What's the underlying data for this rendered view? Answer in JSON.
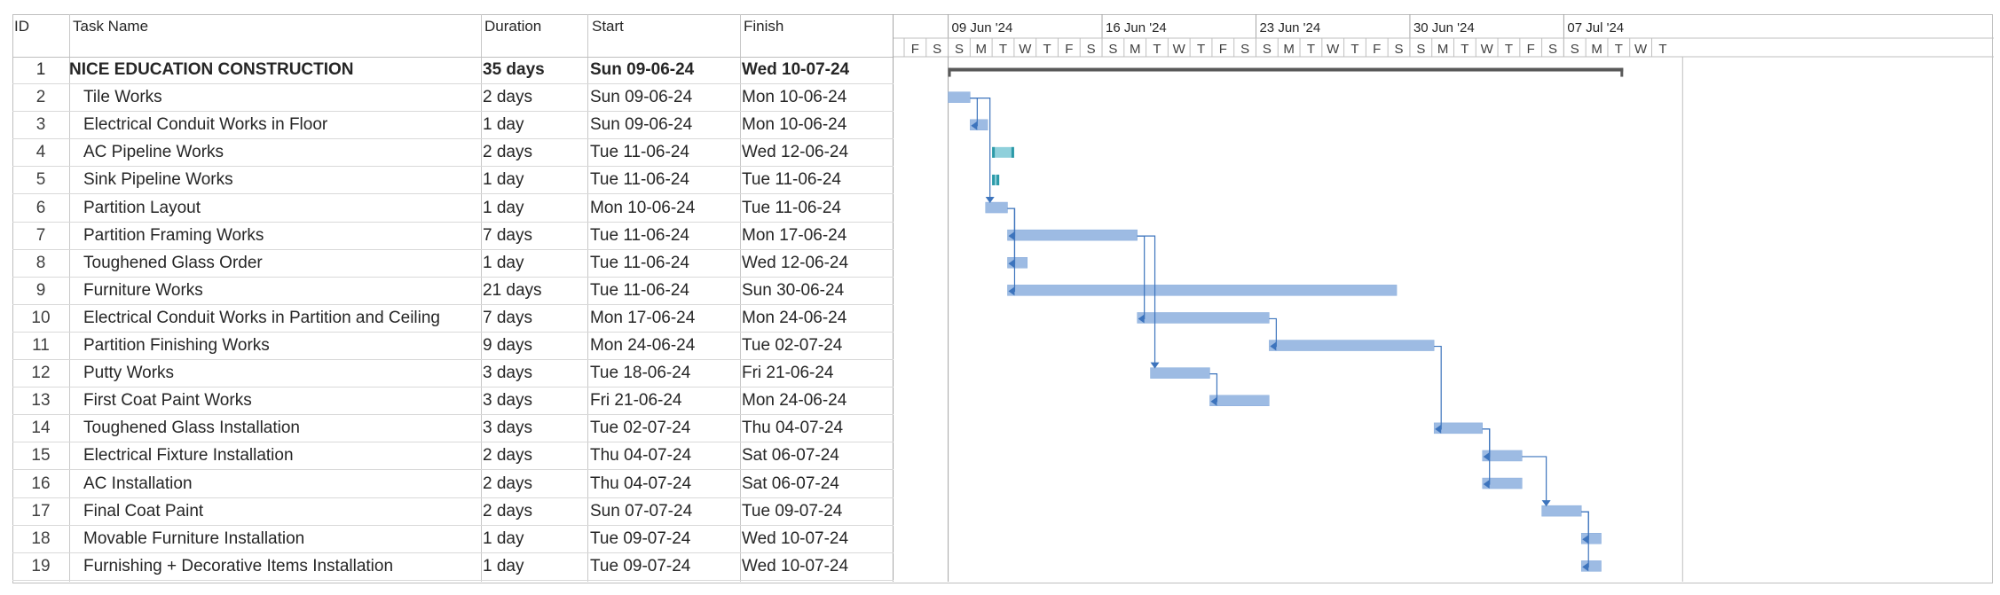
{
  "columns": {
    "id": "ID",
    "task_name": "Task Name",
    "duration": "Duration",
    "start": "Start",
    "finish": "Finish"
  },
  "colors": {
    "bar": "#9dbbe3",
    "bar_edge": "#8aaedc",
    "critical_bar": "#8fd0db",
    "critical_edge": "#2c9aa8",
    "link": "#3d74bd",
    "summary": "#595959",
    "grid": "#d9d9d9"
  },
  "timeline": {
    "weeks": [
      "09 Jun '24",
      "16 Jun '24",
      "23 Jun '24",
      "30 Jun '24",
      "07 Jul '24"
    ],
    "days": [
      "F",
      "S",
      "S",
      "M",
      "T",
      "W",
      "T",
      "F",
      "S",
      "S",
      "M",
      "T",
      "W",
      "T",
      "F",
      "S",
      "S",
      "M",
      "T",
      "W",
      "T",
      "F",
      "S",
      "S",
      "M",
      "T",
      "W",
      "T",
      "F",
      "S",
      "S",
      "M",
      "T",
      "W",
      "T"
    ],
    "first_day": "2024-06-07"
  },
  "tasks": [
    {
      "id": "1",
      "name": "NICE EDUCATION CONSTRUCTION",
      "duration": "35 days",
      "start": "Sun 09-06-24",
      "finish": "Wed 10-07-24",
      "summary": true,
      "bar_start": "2024-06-09",
      "bar_end": "2024-07-10",
      "style": "summary"
    },
    {
      "id": "2",
      "name": "Tile Works",
      "duration": "2 days",
      "start": "Sun 09-06-24",
      "finish": "Mon 10-06-24",
      "bar_start": "2024-06-09",
      "bar_end": "2024-06-10",
      "style": "normal"
    },
    {
      "id": "3",
      "name": "Electrical Conduit Works in Floor",
      "duration": "1 day",
      "start": "Sun 09-06-24",
      "finish": "Mon 10-06-24",
      "bar_start": "2024-06-10",
      "bar_end": "2024-06-10.8",
      "style": "normal"
    },
    {
      "id": "4",
      "name": "AC Pipeline Works",
      "duration": "2 days",
      "start": "Tue 11-06-24",
      "finish": "Wed 12-06-24",
      "bar_start": "2024-06-11",
      "bar_end": "2024-06-12",
      "style": "critical"
    },
    {
      "id": "5",
      "name": "Sink Pipeline Works",
      "duration": "1 day",
      "start": "Tue 11-06-24",
      "finish": "Tue 11-06-24",
      "bar_start": "2024-06-11",
      "bar_end": "2024-06-11",
      "style": "critical"
    },
    {
      "id": "6",
      "name": "Partition Layout",
      "duration": "1 day",
      "start": "Mon 10-06-24",
      "finish": "Tue 11-06-24",
      "bar_start": "2024-06-10.7",
      "bar_end": "2024-06-11.7",
      "style": "normal"
    },
    {
      "id": "7",
      "name": "Partition Framing Works",
      "duration": "7 days",
      "start": "Tue 11-06-24",
      "finish": "Mon 17-06-24",
      "bar_start": "2024-06-11.7",
      "bar_end": "2024-06-17.6",
      "style": "normal"
    },
    {
      "id": "8",
      "name": "Toughened Glass Order",
      "duration": "1 day",
      "start": "Tue 11-06-24",
      "finish": "Wed 12-06-24",
      "bar_start": "2024-06-11.7",
      "bar_end": "2024-06-12.6",
      "style": "normal"
    },
    {
      "id": "9",
      "name": "Furniture Works",
      "duration": "21 days",
      "start": "Tue 11-06-24",
      "finish": "Sun 30-06-24",
      "bar_start": "2024-06-11.7",
      "bar_end": "2024-06-29.4",
      "style": "normal"
    },
    {
      "id": "10",
      "name": "Electrical Conduit Works in Partition and Ceiling",
      "duration": "7 days",
      "start": "Mon 17-06-24",
      "finish": "Mon 24-06-24",
      "bar_start": "2024-06-17.6",
      "bar_end": "2024-06-23.6",
      "style": "normal"
    },
    {
      "id": "11",
      "name": "Partition Finishing Works",
      "duration": "9 days",
      "start": "Mon 24-06-24",
      "finish": "Tue 02-07-24",
      "bar_start": "2024-06-23.6",
      "bar_end": "2024-07-01.1",
      "style": "normal"
    },
    {
      "id": "12",
      "name": "Putty Works",
      "duration": "3 days",
      "start": "Tue 18-06-24",
      "finish": "Fri 21-06-24",
      "bar_start": "2024-06-18.2",
      "bar_end": "2024-06-20.9",
      "style": "normal"
    },
    {
      "id": "13",
      "name": "First Coat Paint Works",
      "duration": "3 days",
      "start": "Fri 21-06-24",
      "finish": "Mon 24-06-24",
      "bar_start": "2024-06-20.9",
      "bar_end": "2024-06-23.6",
      "style": "normal"
    },
    {
      "id": "14",
      "name": "Toughened Glass Installation",
      "duration": "3 days",
      "start": "Tue 02-07-24",
      "finish": "Thu 04-07-24",
      "bar_start": "2024-07-01.1",
      "bar_end": "2024-07-03.3",
      "style": "normal"
    },
    {
      "id": "15",
      "name": "Electrical Fixture Installation",
      "duration": "2 days",
      "start": "Thu 04-07-24",
      "finish": "Sat 06-07-24",
      "bar_start": "2024-07-03.3",
      "bar_end": "2024-07-05.1",
      "style": "normal"
    },
    {
      "id": "16",
      "name": "AC Installation",
      "duration": "2 days",
      "start": "Thu 04-07-24",
      "finish": "Sat 06-07-24",
      "bar_start": "2024-07-03.3",
      "bar_end": "2024-07-05.1",
      "style": "normal"
    },
    {
      "id": "17",
      "name": "Final Coat Paint",
      "duration": "2 days",
      "start": "Sun 07-07-24",
      "finish": "Tue 09-07-24",
      "bar_start": "2024-07-06",
      "bar_end": "2024-07-07.8",
      "style": "normal"
    },
    {
      "id": "18",
      "name": "Movable Furniture Installation",
      "duration": "1 day",
      "start": "Tue 09-07-24",
      "finish": "Wed 10-07-24",
      "bar_start": "2024-07-07.8",
      "bar_end": "2024-07-08.7",
      "style": "normal"
    },
    {
      "id": "19",
      "name": "Furnishing + Decorative Items Installation",
      "duration": "1 day",
      "start": "Tue 09-07-24",
      "finish": "Wed 10-07-24",
      "bar_start": "2024-07-07.8",
      "bar_end": "2024-07-08.7",
      "style": "normal"
    }
  ],
  "links": [
    {
      "from": "2",
      "to": "3"
    },
    {
      "from": "2",
      "to": "6"
    },
    {
      "from": "6",
      "to": "7"
    },
    {
      "from": "6",
      "to": "8"
    },
    {
      "from": "6",
      "to": "9"
    },
    {
      "from": "7",
      "to": "10"
    },
    {
      "from": "7",
      "to": "12"
    },
    {
      "from": "10",
      "to": "11"
    },
    {
      "from": "12",
      "to": "13"
    },
    {
      "from": "11",
      "to": "14"
    },
    {
      "from": "14",
      "to": "15"
    },
    {
      "from": "14",
      "to": "16"
    },
    {
      "from": "15",
      "to": "17"
    },
    {
      "from": "17",
      "to": "18"
    },
    {
      "from": "17",
      "to": "19"
    }
  ]
}
